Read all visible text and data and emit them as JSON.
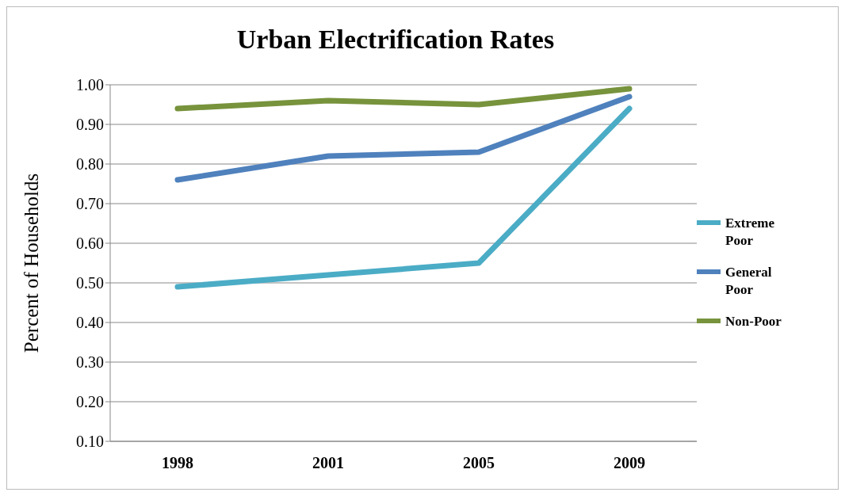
{
  "chart_data": {
    "type": "line",
    "title": "Urban Electrification Rates",
    "ylabel": "Percent of Households",
    "categories": [
      "1998",
      "2001",
      "2005",
      "2009"
    ],
    "series": [
      {
        "name": "Extreme Poor",
        "color": "#4bacc6",
        "values": [
          0.49,
          0.52,
          0.55,
          0.94
        ]
      },
      {
        "name": "General Poor",
        "color": "#4f81bd",
        "values": [
          0.76,
          0.82,
          0.83,
          0.97
        ]
      },
      {
        "name": "Non-Poor",
        "color": "#77933c",
        "values": [
          0.94,
          0.96,
          0.95,
          0.99
        ]
      }
    ],
    "ylim": [
      0.1,
      1.0
    ],
    "yticks": [
      {
        "value": 0.1,
        "label": "0.10"
      },
      {
        "value": 0.2,
        "label": "0.20"
      },
      {
        "value": 0.3,
        "label": "0.30"
      },
      {
        "value": 0.4,
        "label": "0.40"
      },
      {
        "value": 0.5,
        "label": "0.50"
      },
      {
        "value": 0.6,
        "label": "0.60"
      },
      {
        "value": 0.7,
        "label": "0.70"
      },
      {
        "value": 0.8,
        "label": "0.80"
      },
      {
        "value": 0.9,
        "label": "0.90"
      },
      {
        "value": 1.0,
        "label": "1.00"
      }
    ],
    "grid": "y",
    "legend": "right",
    "marker": "none",
    "line_style": "solid"
  }
}
